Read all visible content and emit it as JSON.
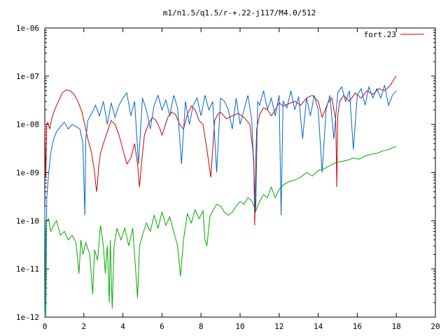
{
  "chart_data": {
    "type": "line",
    "title": "m1/n1.5/q1.5/r-+.22-j117/M4.0/512",
    "xlabel": "",
    "ylabel": "",
    "xlim": [
      0,
      20
    ],
    "ylim": [
      1e-12,
      1e-06
    ],
    "yscale": "log",
    "grid": false,
    "legend_placement": "top-right",
    "x_ticks": [
      0,
      2,
      4,
      6,
      8,
      10,
      12,
      14,
      16,
      18,
      20
    ],
    "x_tick_labels": [
      "0",
      "2",
      "4",
      "6",
      "8",
      "10",
      "12",
      "14",
      "16",
      "18",
      "20"
    ],
    "y_ticks": [
      1e-12,
      1e-11,
      1e-10,
      1e-09,
      1e-08,
      1e-07,
      1e-06
    ],
    "y_tick_labels": [
      "1e-12",
      "1e-11",
      "1e-10",
      "1e-09",
      "1e-08",
      "1e-07",
      "1e-06"
    ],
    "series": [
      {
        "name": "fort.23",
        "color": "#cc0000",
        "x": [
          0.0,
          0.05,
          0.1,
          0.15,
          0.25,
          0.35,
          0.5,
          0.7,
          0.9,
          1.1,
          1.3,
          1.5,
          1.7,
          1.9,
          2.05,
          2.2,
          2.4,
          2.55,
          2.65,
          2.7,
          2.75,
          2.85,
          3.0,
          3.2,
          3.4,
          3.6,
          3.8,
          4.0,
          4.2,
          4.4,
          4.6,
          4.75,
          4.85,
          4.95,
          5.1,
          5.3,
          5.5,
          5.7,
          5.9,
          6.0,
          6.1,
          6.3,
          6.5,
          6.7,
          6.9,
          7.1,
          7.3,
          7.5,
          7.7,
          7.9,
          8.1,
          8.3,
          8.5,
          8.6,
          8.7,
          8.85,
          9.0,
          9.3,
          9.6,
          9.9,
          10.2,
          10.5,
          10.7,
          10.75,
          10.8,
          10.85,
          11.0,
          11.2,
          11.4,
          11.6,
          11.8,
          12.0,
          12.2,
          12.5,
          12.8,
          13.1,
          13.4,
          13.7,
          14.0,
          14.2,
          14.5,
          14.7,
          14.9,
          14.95,
          15.0,
          15.1,
          15.3,
          15.6,
          15.9,
          16.2,
          16.5,
          16.8,
          17.1,
          17.4,
          17.7,
          17.9,
          18.0
        ],
        "y": [
          1e-08,
          8e-10,
          1e-08,
          1.1e-08,
          8e-09,
          1.3e-08,
          2e-08,
          3e-08,
          4.5e-08,
          5.2e-08,
          5e-08,
          4.2e-08,
          3e-08,
          1.8e-08,
          1e-08,
          5e-09,
          2.5e-09,
          1e-09,
          4e-10,
          6e-10,
          1.2e-09,
          2.5e-09,
          4e-09,
          7e-09,
          1.2e-08,
          1e-08,
          6e-09,
          3e-09,
          1.5e-09,
          2e-09,
          4e-09,
          1.5e-09,
          5e-10,
          1.5e-09,
          6e-09,
          1e-08,
          1.4e-08,
          1.2e-08,
          8e-09,
          6e-09,
          8e-09,
          1.4e-08,
          1.8e-08,
          1.6e-08,
          1e-08,
          8e-09,
          1.6e-08,
          2.4e-08,
          2e-08,
          1.2e-08,
          1e-08,
          3e-09,
          8e-10,
          3e-09,
          1.2e-08,
          1.6e-08,
          1.8e-08,
          1.3e-08,
          1.5e-08,
          1.7e-08,
          1.4e-08,
          1e-08,
          2e-09,
          8e-11,
          1.5e-09,
          8e-09,
          1.6e-08,
          2.2e-08,
          2e-08,
          1.5e-08,
          2e-08,
          2.8e-08,
          2.4e-08,
          2.7e-08,
          3e-08,
          2.5e-08,
          3.5e-08,
          4e-08,
          3e-08,
          1.4e-08,
          2.8e-08,
          3.5e-08,
          1.2e-08,
          5e-10,
          1.5e-08,
          3e-08,
          4e-08,
          3e-08,
          4.5e-08,
          3.5e-08,
          5e-08,
          4.2e-08,
          5.5e-08,
          5e-08,
          6.5e-08,
          9e-08,
          1e-07
        ]
      },
      {
        "name": "",
        "color": "#0066cc",
        "x": [
          0.0,
          0.05,
          0.1,
          0.2,
          0.3,
          0.45,
          0.6,
          0.8,
          1.0,
          1.2,
          1.4,
          1.6,
          1.8,
          1.95,
          2.05,
          2.1,
          2.2,
          2.4,
          2.6,
          2.8,
          3.0,
          3.2,
          3.4,
          3.6,
          3.8,
          4.0,
          4.2,
          4.4,
          4.6,
          4.8,
          5.0,
          5.2,
          5.4,
          5.6,
          5.8,
          6.0,
          6.2,
          6.4,
          6.6,
          6.8,
          7.0,
          7.2,
          7.4,
          7.6,
          7.8,
          8.0,
          8.2,
          8.4,
          8.6,
          8.8,
          9.0,
          9.2,
          9.4,
          9.6,
          9.8,
          10.0,
          10.2,
          10.4,
          10.6,
          10.8,
          10.9,
          11.0,
          11.2,
          11.4,
          11.6,
          11.8,
          12.0,
          12.1,
          12.2,
          12.4,
          12.6,
          12.8,
          13.0,
          13.2,
          13.4,
          13.6,
          13.8,
          14.0,
          14.2,
          14.4,
          14.6,
          14.8,
          15.0,
          15.2,
          15.4,
          15.6,
          15.8,
          16.0,
          16.2,
          16.4,
          16.6,
          16.8,
          17.0,
          17.2,
          17.4,
          17.6,
          17.8,
          18.0
        ],
        "y": [
          2e-10,
          1e-12,
          3e-10,
          1e-09,
          2.5e-09,
          5e-09,
          7e-09,
          9e-09,
          1.1e-08,
          8e-09,
          1e-08,
          9e-09,
          8e-09,
          4e-09,
          1.3e-10,
          5e-09,
          1.2e-08,
          1.7e-08,
          2.5e-08,
          1.5e-08,
          3e-08,
          1e-08,
          2.8e-08,
          1.4e-08,
          2.5e-08,
          3.5e-08,
          4.5e-08,
          1.5e-08,
          3e-08,
          1.5e-09,
          3.5e-08,
          2e-08,
          8e-09,
          2.5e-08,
          4e-08,
          2e-08,
          3.2e-08,
          1.5e-08,
          4e-08,
          2.2e-08,
          1.5e-09,
          3e-08,
          1e-08,
          2.5e-08,
          3.5e-08,
          1.5e-08,
          4e-08,
          2e-08,
          3e-08,
          1e-09,
          3.5e-08,
          3e-08,
          2e-08,
          8e-09,
          3.5e-08,
          1e-08,
          2e-08,
          4e-08,
          1.2e-08,
          1.5e-10,
          3e-08,
          2.5e-08,
          5e-08,
          2e-08,
          3.5e-08,
          1.5e-08,
          4e-08,
          1.3e-10,
          3e-08,
          2.2e-08,
          5e-08,
          2e-08,
          3.8e-08,
          5e-09,
          3.5e-08,
          1.5e-08,
          4e-08,
          2e-08,
          1e-09,
          2e-08,
          4e-08,
          5e-09,
          4.5e-08,
          6e-08,
          3e-08,
          5e-08,
          3e-09,
          4e-08,
          5.5e-08,
          2.5e-08,
          6e-08,
          3.5e-08,
          5.5e-08,
          3.5e-08,
          6.5e-08,
          2.5e-08,
          4e-08,
          5e-08
        ]
      },
      {
        "name": "",
        "color": "#00aa00",
        "x": [
          0.0,
          0.05,
          0.1,
          0.2,
          0.3,
          0.45,
          0.6,
          0.8,
          1.0,
          1.2,
          1.4,
          1.6,
          1.75,
          1.85,
          1.95,
          2.1,
          2.3,
          2.45,
          2.55,
          2.7,
          2.85,
          3.0,
          3.1,
          3.2,
          3.3,
          3.35,
          3.45,
          3.55,
          3.7,
          3.9,
          4.1,
          4.3,
          4.5,
          4.65,
          4.75,
          4.85,
          5.0,
          5.2,
          5.4,
          5.6,
          5.8,
          6.0,
          6.2,
          6.4,
          6.6,
          6.8,
          6.95,
          7.1,
          7.3,
          7.5,
          7.7,
          7.9,
          8.1,
          8.2,
          8.3,
          8.45,
          8.6,
          8.8,
          9.0,
          9.2,
          9.4,
          9.6,
          9.8,
          10.0,
          10.2,
          10.4,
          10.6,
          10.8,
          11.0,
          11.2,
          11.4,
          11.6,
          11.8,
          12.0,
          12.2,
          12.5,
          12.8,
          13.1,
          13.4,
          13.7,
          14.0,
          14.3,
          14.6,
          14.9,
          15.2,
          15.5,
          15.8,
          16.1,
          16.4,
          16.7,
          17.0,
          17.3,
          17.6,
          17.9,
          18.0
        ],
        "y": [
          1e-12,
          5e-11,
          1e-10,
          1.1e-10,
          6e-11,
          8e-11,
          1e-10,
          5e-11,
          6e-11,
          4e-11,
          5e-11,
          3.5e-11,
          8e-12,
          4e-11,
          2e-11,
          3.5e-11,
          2e-11,
          3e-12,
          2.5e-11,
          1.5e-11,
          8e-11,
          3e-11,
          8e-12,
          3e-11,
          2e-12,
          4e-11,
          1.5e-12,
          3e-11,
          7e-11,
          4e-11,
          7e-11,
          3e-11,
          7e-11,
          1e-11,
          2.5e-12,
          3e-11,
          5e-11,
          9e-11,
          6e-11,
          1.3e-10,
          7e-11,
          1.5e-10,
          8e-11,
          1.2e-10,
          6e-11,
          3e-11,
          7e-12,
          4e-11,
          1.4e-10,
          9e-11,
          1.7e-10,
          1.1e-10,
          1.6e-10,
          4e-11,
          3e-11,
          1.2e-10,
          1.6e-10,
          2.2e-10,
          2e-10,
          1.5e-10,
          1.3e-10,
          1.5e-10,
          2e-10,
          2.5e-10,
          2.2e-10,
          3e-10,
          2.6e-10,
          1.6e-10,
          2.5e-10,
          3.5e-10,
          3e-10,
          5e-10,
          3e-10,
          4.5e-10,
          5.5e-10,
          6.5e-10,
          7e-10,
          8e-10,
          1e-09,
          8.5e-10,
          1.1e-09,
          1.2e-09,
          1.4e-09,
          1.6e-09,
          1.7e-09,
          1.8e-09,
          2e-09,
          1.9e-09,
          2.2e-09,
          2.4e-09,
          2.5e-09,
          2.8e-09,
          3e-09,
          3.4e-09,
          3.4e-09
        ]
      }
    ]
  }
}
